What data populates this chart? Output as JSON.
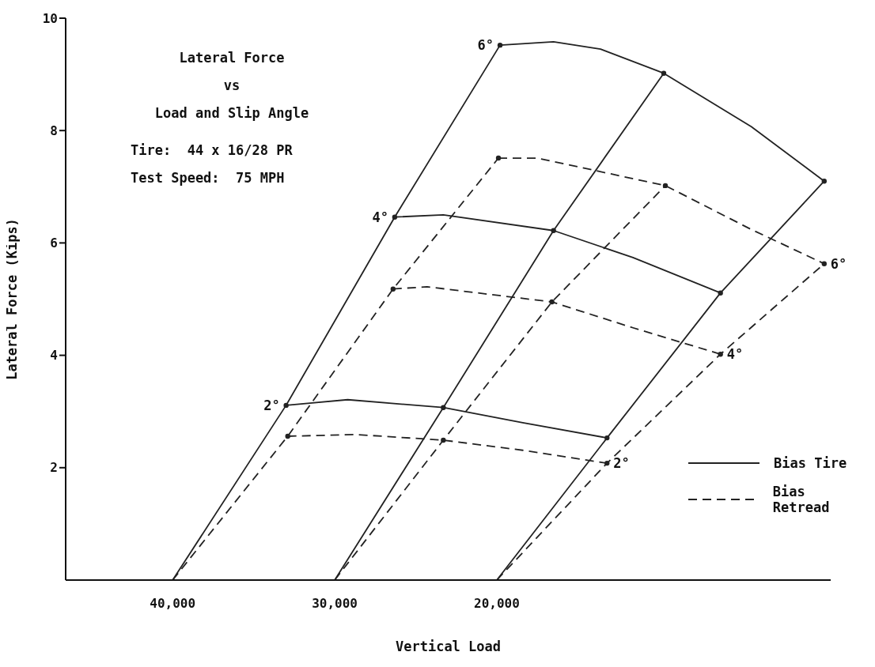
{
  "chart_data": {
    "type": "line",
    "title": "Lateral Force\nvs\nLoad and Slip Angle",
    "xlabel": "Vertical Load",
    "ylabel": "Lateral Force (Kips)",
    "xlim": [
      46600,
      -600
    ],
    "xticks": [
      {
        "value": 40000,
        "label": "40,000"
      },
      {
        "value": 30000,
        "label": "30,000"
      },
      {
        "value": 20000,
        "label": "20,000"
      }
    ],
    "ylim": [
      0,
      10
    ],
    "yticks": [
      2,
      4,
      6,
      8,
      10
    ],
    "grid": false,
    "legend": "right",
    "annotations": [
      "Tire:  44 x 16/28 PR",
      "Test Speed:  75 MPH",
      {
        "text": "6°",
        "x": 19800,
        "y": 9.52
      },
      {
        "text": "4°",
        "x": 26300,
        "y": 6.46
      },
      {
        "text": "2°",
        "x": 33000,
        "y": 3.11
      },
      {
        "text": "6°",
        "x": -200,
        "y": 5.63
      },
      {
        "text": "4°",
        "x": 6200,
        "y": 4.02
      },
      {
        "text": "2°",
        "x": 13200,
        "y": 2.08
      }
    ],
    "series": [
      {
        "name": "Bias Tire",
        "color": "#222222",
        "line_style": "solid",
        "marker": "circle",
        "x": [
          40000,
          33000,
          26300,
          19800
        ],
        "values": [
          0,
          3.11,
          6.46,
          9.52
        ]
      },
      {
        "color": "#222222",
        "line_style": "solid",
        "marker": "circle",
        "x": [
          30000,
          23300,
          16500,
          9700
        ],
        "values": [
          0,
          3.07,
          6.22,
          9.02
        ]
      },
      {
        "color": "#222222",
        "line_style": "solid",
        "marker": "circle",
        "x": [
          20000,
          13200,
          6200,
          -200
        ],
        "values": [
          0,
          2.53,
          5.11,
          7.1
        ]
      },
      {
        "name": "Bias Retread",
        "color": "#222222",
        "line_style": "dashed",
        "marker": "circle",
        "x": [
          40000,
          32900,
          26400,
          19900
        ],
        "values": [
          0,
          2.56,
          5.18,
          7.51
        ]
      },
      {
        "color": "#222222",
        "line_style": "dashed",
        "marker": "circle",
        "x": [
          30000,
          23300,
          16600,
          9600
        ],
        "values": [
          0,
          2.49,
          4.95,
          7.02
        ]
      },
      {
        "color": "#222222",
        "line_style": "dashed",
        "marker": "circle",
        "x": [
          20000,
          13200,
          6200,
          -200
        ],
        "values": [
          0,
          2.08,
          4.02,
          5.63
        ]
      },
      {
        "color": "#222222",
        "line_style": "solid",
        "marker": "none",
        "x": [
          19800,
          16500,
          13600,
          9700,
          4300,
          -200
        ],
        "values": [
          9.52,
          9.58,
          9.45,
          9.02,
          8.07,
          7.1
        ]
      },
      {
        "color": "#222222",
        "line_style": "solid",
        "marker": "none",
        "x": [
          26300,
          23300,
          16500,
          11600,
          6200
        ],
        "values": [
          6.46,
          6.5,
          6.22,
          5.74,
          5.11
        ]
      },
      {
        "color": "#222222",
        "line_style": "solid",
        "marker": "none",
        "x": [
          33000,
          29200,
          23300,
          18400,
          13200
        ],
        "values": [
          3.11,
          3.21,
          3.07,
          2.8,
          2.53
        ]
      },
      {
        "color": "#222222",
        "line_style": "dashed",
        "marker": "none",
        "x": [
          19900,
          17500,
          9600,
          4300,
          -200
        ],
        "values": [
          7.51,
          7.51,
          7.02,
          6.24,
          5.63
        ]
      },
      {
        "color": "#222222",
        "line_style": "dashed",
        "marker": "none",
        "x": [
          26400,
          24300,
          16600,
          11600,
          6200
        ],
        "values": [
          5.18,
          5.22,
          4.95,
          4.49,
          4.02
        ]
      },
      {
        "color": "#222222",
        "line_style": "dashed",
        "marker": "none",
        "x": [
          32900,
          28700,
          23300,
          18400,
          13200
        ],
        "values": [
          2.56,
          2.59,
          2.49,
          2.31,
          2.08
        ]
      }
    ]
  }
}
